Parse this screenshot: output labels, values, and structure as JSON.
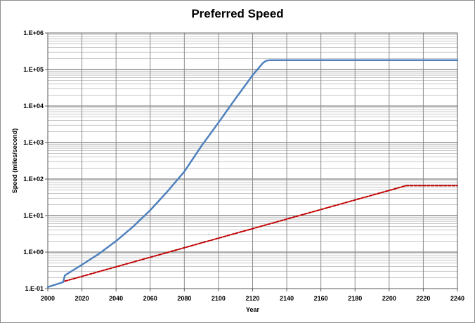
{
  "chart_data": {
    "type": "line",
    "title": "Preferred Speed",
    "xlabel": "Year",
    "ylabel": "Speed (miles/second)",
    "scale": {
      "y": "log10"
    },
    "xlim": [
      2000,
      2240
    ],
    "ylim": [
      0.1,
      1000000
    ],
    "xticks": [
      2000,
      2020,
      2040,
      2060,
      2080,
      2100,
      2120,
      2140,
      2160,
      2180,
      2200,
      2220,
      2240
    ],
    "yticks": [
      {
        "value": 0.1,
        "label": "1.E-01"
      },
      {
        "value": 1,
        "label": "1.E+00"
      },
      {
        "value": 10,
        "label": "1.E+01"
      },
      {
        "value": 100,
        "label": "1.E+02"
      },
      {
        "value": 1000,
        "label": "1.E+03"
      },
      {
        "value": 10000,
        "label": "1.E+04"
      },
      {
        "value": 100000,
        "label": "1.E+05"
      },
      {
        "value": 1000000,
        "label": "1.E+06"
      }
    ],
    "grid": true,
    "minor_grid": true,
    "legend": "none",
    "series": [
      {
        "color": "#4f81bd",
        "style": "solid",
        "x": [
          2000,
          2009,
          2010,
          2020,
          2030,
          2040,
          2050,
          2060,
          2070,
          2080,
          2090,
          2100,
          2110,
          2120,
          2126,
          2128,
          2130,
          2240
        ],
        "y": [
          0.11,
          0.15,
          0.23,
          0.45,
          0.9,
          2.0,
          5.0,
          14,
          45,
          160,
          800,
          3500,
          16000,
          70000,
          150000,
          175000,
          180000,
          180000
        ]
      },
      {
        "color": "#c00000",
        "style": "dashed",
        "x": [
          2010,
          2210,
          2240
        ],
        "y": [
          0.16,
          66,
          66
        ]
      }
    ]
  }
}
